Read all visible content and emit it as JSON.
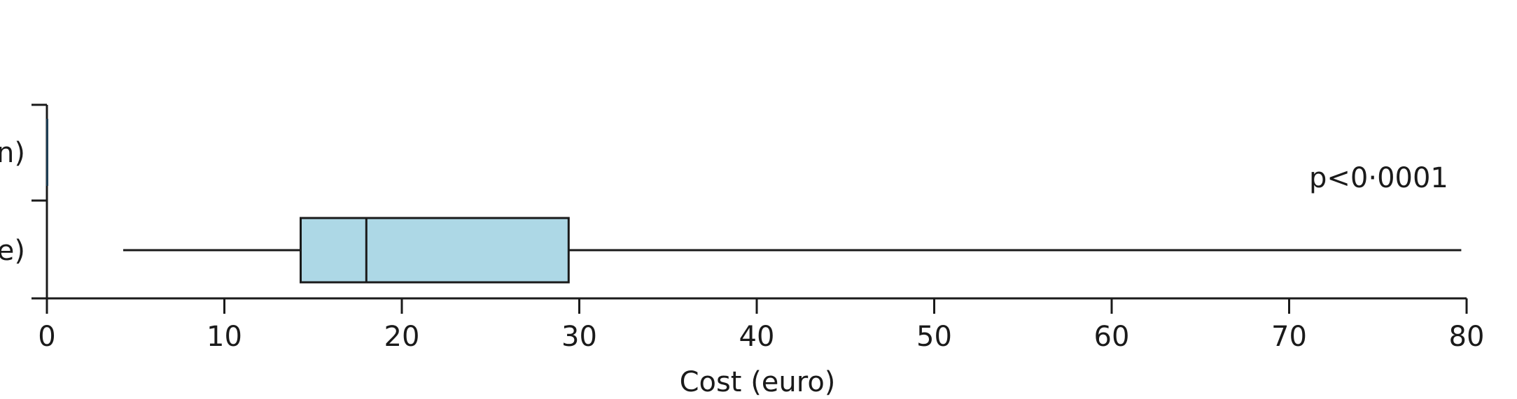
{
  "chart_data": {
    "type": "boxplot",
    "orientation": "horizontal",
    "xlabel": "Cost (euro)",
    "xlim": [
      0,
      80
    ],
    "xticks": [
      0,
      10,
      20,
      30,
      40,
      50,
      60,
      70,
      80
    ],
    "box_color": "#add8e6",
    "line_color": "#1a1a1a",
    "categories": [
      "n)",
      "ce)"
    ],
    "boxes": [
      {
        "label": "n)",
        "min": 0,
        "q1": 0,
        "median": 0,
        "q3": 0,
        "max": 0
      },
      {
        "label": "ce)",
        "min": 4.3,
        "q1": 14.3,
        "median": 18.0,
        "q3": 29.4,
        "max": 79.7
      }
    ],
    "annotation": "p<0·0001"
  }
}
